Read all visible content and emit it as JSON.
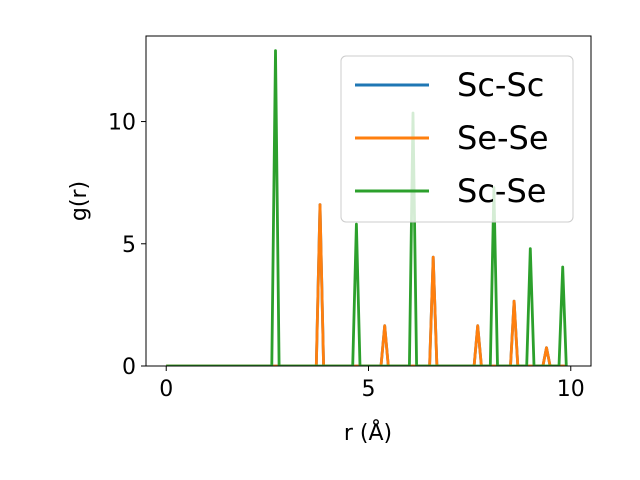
{
  "chart_data": {
    "type": "line",
    "xlabel": "r (Å)",
    "ylabel": "g(r)",
    "xlim": [
      -0.5,
      10.5
    ],
    "ylim": [
      0,
      13.5
    ],
    "xticks": [
      0,
      5,
      10
    ],
    "yticks": [
      0,
      5,
      10
    ],
    "xtick_labels": [
      "0",
      "5",
      "10"
    ],
    "ytick_labels": [
      "0",
      "5",
      "10"
    ],
    "x_range": [
      0,
      9.9
    ],
    "grid": false,
    "legend_position": "top-right",
    "series": [
      {
        "name": "Sc-Sc",
        "color": "#1f77b4",
        "peaks": [
          [
            3.8,
            6.6
          ],
          [
            5.4,
            1.65
          ],
          [
            6.6,
            4.45
          ],
          [
            7.7,
            1.65
          ],
          [
            8.6,
            2.65
          ],
          [
            9.4,
            0.75
          ]
        ]
      },
      {
        "name": "Se-Se",
        "color": "#ff7f0e",
        "peaks": [
          [
            3.8,
            6.6
          ],
          [
            5.4,
            1.65
          ],
          [
            6.6,
            4.45
          ],
          [
            7.7,
            1.65
          ],
          [
            8.6,
            2.65
          ],
          [
            9.4,
            0.75
          ]
        ]
      },
      {
        "name": "Sc-Se",
        "color": "#2ca02c",
        "peaks": [
          [
            2.7,
            12.9
          ],
          [
            4.7,
            5.8
          ],
          [
            6.1,
            10.35
          ],
          [
            8.1,
            7.3
          ],
          [
            9.0,
            4.8
          ],
          [
            9.8,
            4.05
          ]
        ]
      }
    ]
  }
}
